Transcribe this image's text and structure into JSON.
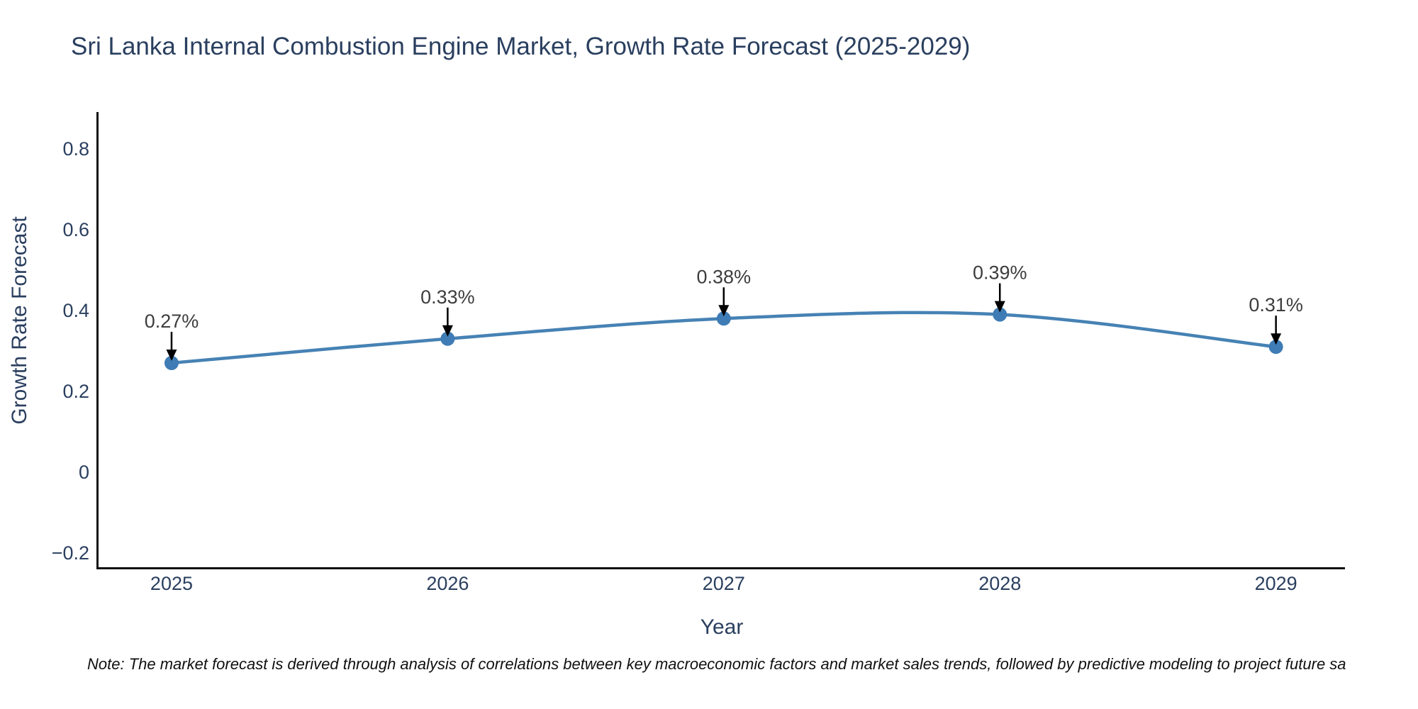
{
  "note": "Note: The market forecast is derived through analysis of correlations between key macroeconomic factors and market sales trends, followed by predictive modeling to project future sa",
  "colors": {
    "title_text": "#2a3f5f",
    "tick_text": "#2a3f5f",
    "annotation_text": "#3d3d3d",
    "axis_line": "#111111",
    "line": "#4682b4",
    "marker": "#3f7cb5",
    "arrow": "#000000",
    "background": "#ffffff"
  },
  "chart_data": {
    "type": "line",
    "line_shape": "spline",
    "title": "Sri Lanka Internal Combustion Engine Market, Growth Rate Forecast (2025-2029)",
    "xlabel": "Year",
    "ylabel": "Growth Rate Forecast",
    "x": [
      2025,
      2026,
      2027,
      2028,
      2029
    ],
    "values": [
      0.27,
      0.33,
      0.38,
      0.39,
      0.31
    ],
    "series": [
      {
        "name": "Growth Rate Forecast",
        "values": [
          0.27,
          0.33,
          0.38,
          0.39,
          0.31
        ]
      }
    ],
    "annotations": [
      {
        "x": 2025,
        "y": 0.27,
        "text": "0.27%"
      },
      {
        "x": 2026,
        "y": 0.33,
        "text": "0.33%"
      },
      {
        "x": 2027,
        "y": 0.38,
        "text": "0.38%"
      },
      {
        "x": 2028,
        "y": 0.39,
        "text": "0.39%"
      },
      {
        "x": 2029,
        "y": 0.31,
        "text": "0.31%"
      }
    ],
    "x_ticks": [
      2025,
      2026,
      2027,
      2028,
      2029
    ],
    "x_tick_labels": [
      "2025",
      "2026",
      "2027",
      "2028",
      "2029"
    ],
    "y_ticks": [
      -0.2,
      0,
      0.2,
      0.4,
      0.6,
      0.8
    ],
    "y_tick_labels": [
      "−0.2",
      "0",
      "0.2",
      "0.4",
      "0.6",
      "0.8"
    ],
    "xlim": [
      2024.733,
      2029.25
    ],
    "ylim": [
      -0.237,
      0.891
    ],
    "grid": false,
    "legend": false,
    "markers": true
  }
}
